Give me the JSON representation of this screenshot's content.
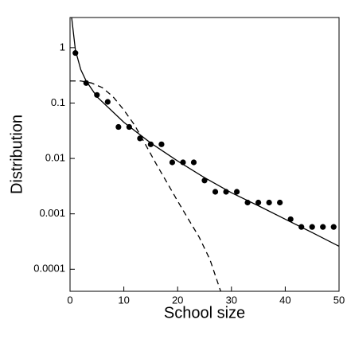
{
  "chart_data": {
    "type": "scatter",
    "x_label": "School size",
    "y_label": "Distribution",
    "xlim": [
      0,
      50
    ],
    "ylim": [
      4e-05,
      3.5
    ],
    "y_log": true,
    "xticks": [
      0,
      10,
      20,
      30,
      40,
      50
    ],
    "yticks": [
      1,
      0.1,
      0.01,
      0.001,
      0.0001
    ],
    "series": [
      {
        "type": "scatter",
        "color": "#000000",
        "x": [
          1,
          3,
          5,
          7,
          9,
          11,
          13,
          15,
          17,
          19,
          21,
          23,
          25,
          27,
          29,
          31,
          33,
          35,
          37,
          39,
          41,
          43,
          45,
          47,
          49
        ],
        "values": [
          0.8,
          0.23,
          0.14,
          0.105,
          0.037,
          0.037,
          0.023,
          0.018,
          0.018,
          0.0085,
          0.0085,
          0.0085,
          0.004,
          0.0025,
          0.0025,
          0.0025,
          0.0016,
          0.0016,
          0.0016,
          0.0016,
          0.0008,
          0.00058,
          0.00058,
          0.00058,
          0.00058
        ]
      },
      {
        "type": "line",
        "color": "#000000",
        "dashed": false,
        "x": [
          0.3,
          1,
          2,
          3,
          5,
          10,
          15,
          20,
          25,
          30,
          35,
          40,
          45,
          50
        ],
        "values": [
          3.5,
          0.9,
          0.4,
          0.25,
          0.13,
          0.045,
          0.019,
          0.009,
          0.0045,
          0.0024,
          0.0014,
          0.0008,
          0.00046,
          0.00026
        ]
      },
      {
        "type": "line",
        "color": "#000000",
        "dashed": true,
        "x": [
          0,
          2,
          4,
          6,
          8,
          10,
          12,
          14,
          16,
          18,
          20,
          22,
          24,
          26,
          28
        ],
        "values": [
          0.25,
          0.25,
          0.23,
          0.19,
          0.13,
          0.075,
          0.04,
          0.018,
          0.008,
          0.0037,
          0.0017,
          0.0008,
          0.00038,
          0.00015,
          4e-05
        ]
      }
    ]
  }
}
